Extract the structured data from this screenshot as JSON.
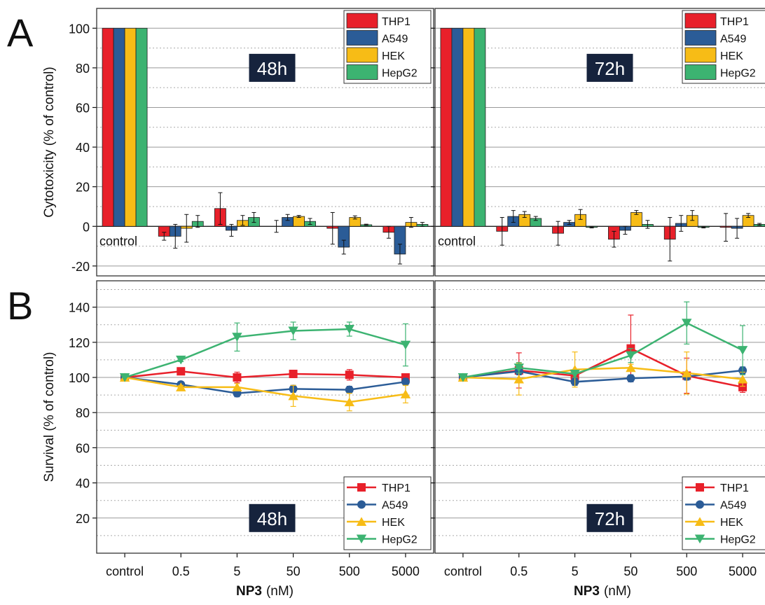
{
  "figure": {
    "panel_labels": [
      "A",
      "B"
    ],
    "x_title_bold": "NP3",
    "x_title_unit": "(nM)"
  },
  "legend": {
    "series": [
      "THP1",
      "A549",
      "HEK",
      "HepG2"
    ],
    "colors": [
      "#e8202a",
      "#2b5c97",
      "#f7bc16",
      "#3cb371"
    ],
    "markers": [
      "square",
      "circle",
      "triangle-up",
      "triangle-down"
    ]
  },
  "chart_data": [
    {
      "type": "bar",
      "panel": "A",
      "subpanel": "48h",
      "title": "48h",
      "ylabel": "Cytotoxicity (% of control)",
      "ylim": [
        -25,
        110
      ],
      "yticks": [
        -20,
        0,
        20,
        40,
        60,
        80,
        100
      ],
      "categories": [
        "control",
        "0.5",
        "5",
        "50",
        "500",
        "5000"
      ],
      "bar_label": "control",
      "grid": true,
      "legend_position": "top-right",
      "series": [
        {
          "name": "THP1",
          "values": [
            100,
            -5,
            9,
            0,
            -1,
            -3
          ],
          "errors": [
            0,
            2,
            8,
            3,
            8,
            3
          ]
        },
        {
          "name": "A549",
          "values": [
            100,
            -5,
            -2,
            4.5,
            -10.5,
            -14
          ],
          "errors": [
            0,
            6,
            3,
            1.5,
            3.5,
            5
          ]
        },
        {
          "name": "HEK",
          "values": [
            100,
            -1,
            3,
            5,
            4.5,
            2
          ],
          "errors": [
            0,
            7,
            2.5,
            0.5,
            0.8,
            2.5
          ]
        },
        {
          "name": "HepG2",
          "values": [
            100,
            2.5,
            4.5,
            2.5,
            0.8,
            1
          ],
          "errors": [
            0,
            3,
            2.5,
            1.5,
            0.3,
            1
          ]
        }
      ]
    },
    {
      "type": "bar",
      "panel": "A",
      "subpanel": "72h",
      "title": "72h",
      "ylabel": "",
      "ylim": [
        -25,
        110
      ],
      "yticks": [
        -20,
        0,
        20,
        40,
        60,
        80,
        100
      ],
      "categories": [
        "control",
        "0.5",
        "5",
        "50",
        "500",
        "5000"
      ],
      "bar_label": "control",
      "grid": true,
      "legend_position": "top-right",
      "series": [
        {
          "name": "THP1",
          "values": [
            100,
            -2.5,
            -3.5,
            -6.5,
            -6.5,
            -0.5
          ],
          "errors": [
            0,
            7,
            6,
            4,
            11,
            7
          ]
        },
        {
          "name": "A549",
          "values": [
            100,
            5,
            2,
            -2,
            1.5,
            -1
          ],
          "errors": [
            0,
            3,
            1,
            2,
            4,
            5
          ]
        },
        {
          "name": "HEK",
          "values": [
            100,
            6,
            6,
            7,
            5.5,
            5.5
          ],
          "errors": [
            0,
            1.5,
            2.5,
            1,
            2.5,
            1
          ]
        },
        {
          "name": "HepG2",
          "values": [
            100,
            4,
            -0.5,
            1,
            -0.5,
            1
          ],
          "errors": [
            0,
            1,
            0.3,
            2,
            0.3,
            0.5
          ]
        }
      ]
    },
    {
      "type": "line",
      "panel": "B",
      "subpanel": "48h",
      "title": "48h",
      "ylabel": "Survival (% of control)",
      "ylim": [
        0,
        155
      ],
      "yticks": [
        20,
        40,
        60,
        80,
        100,
        120,
        140
      ],
      "categories": [
        "control",
        "0.5",
        "5",
        "50",
        "500",
        "5000"
      ],
      "grid": true,
      "legend_position": "bottom-right",
      "series": [
        {
          "name": "THP1",
          "values": [
            100,
            103.5,
            100,
            102,
            101.5,
            100
          ],
          "errors": [
            0,
            0,
            3,
            2,
            3,
            2
          ]
        },
        {
          "name": "A549",
          "values": [
            100,
            96,
            91,
            93.5,
            93,
            97.5
          ],
          "errors": [
            0,
            0,
            2,
            2,
            2,
            2
          ]
        },
        {
          "name": "HEK",
          "values": [
            100,
            94.5,
            94.5,
            89.5,
            86,
            90.5
          ],
          "errors": [
            0,
            1,
            2,
            6,
            5,
            5
          ]
        },
        {
          "name": "HepG2",
          "values": [
            100,
            110,
            123,
            126.5,
            127.5,
            118.5
          ],
          "errors": [
            0,
            1,
            8,
            5,
            4,
            12
          ]
        }
      ]
    },
    {
      "type": "line",
      "panel": "B",
      "subpanel": "72h",
      "title": "72h",
      "ylabel": "",
      "ylim": [
        0,
        155
      ],
      "yticks": [
        20,
        40,
        60,
        80,
        100,
        120,
        140
      ],
      "categories": [
        "control",
        "0.5",
        "5",
        "50",
        "500",
        "5000"
      ],
      "grid": true,
      "legend_position": "bottom-right",
      "series": [
        {
          "name": "THP1",
          "values": [
            100,
            104,
            101,
            116.5,
            101,
            94.5
          ],
          "errors": [
            0,
            10,
            3,
            19,
            10,
            3
          ]
        },
        {
          "name": "A549",
          "values": [
            100,
            103.5,
            97.5,
            99.5,
            100.5,
            104
          ],
          "errors": [
            0,
            2,
            2,
            2,
            2,
            2
          ]
        },
        {
          "name": "HEK",
          "values": [
            100,
            99,
            104.5,
            105.5,
            102.5,
            99
          ],
          "errors": [
            0,
            9,
            10,
            2,
            12,
            4
          ]
        },
        {
          "name": "HepG2",
          "values": [
            100,
            105.5,
            102,
            112.5,
            131,
            115.5
          ],
          "errors": [
            0,
            3,
            2,
            4,
            12,
            14
          ]
        }
      ]
    }
  ]
}
